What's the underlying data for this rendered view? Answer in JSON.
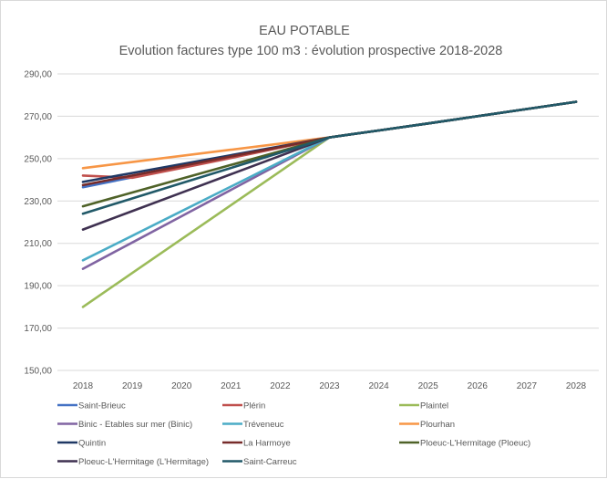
{
  "chart_data": {
    "type": "line",
    "title": "EAU POTABLE",
    "subtitle": "Evolution factures type 100 m3 : évolution prospective 2018-2028",
    "xlabel": "",
    "ylabel": "",
    "x": [
      "2018",
      "2019",
      "2020",
      "2021",
      "2022",
      "2023",
      "2024",
      "2025",
      "2026",
      "2027",
      "2028"
    ],
    "ylim": [
      150,
      290
    ],
    "yticks": [
      150,
      170,
      190,
      210,
      230,
      250,
      270,
      290
    ],
    "ytick_labels": [
      "150,00",
      "170,00",
      "190,00",
      "210,00",
      "230,00",
      "250,00",
      "270,00",
      "290,00"
    ],
    "grid": true,
    "legend_position": "bottom",
    "series": [
      {
        "name": "Saint-Brieuc",
        "color": "#4472c4",
        "values": [
          236.5,
          241.2,
          245.9,
          250.6,
          255.3,
          260.0,
          263.3,
          266.6,
          270.0,
          273.4,
          276.8
        ]
      },
      {
        "name": "Plérin",
        "color": "#c0504d",
        "values": [
          242.0,
          241.0,
          245.6,
          250.3,
          255.2,
          260.0,
          263.3,
          266.6,
          270.0,
          273.4,
          276.8
        ]
      },
      {
        "name": "Plaintel",
        "color": "#9bbb59",
        "values": [
          180.0,
          196.0,
          212.0,
          228.0,
          244.0,
          260.0,
          263.3,
          266.6,
          270.0,
          273.4,
          276.8
        ]
      },
      {
        "name": "Binic - Etables sur mer (Binic)",
        "color": "#8064a2",
        "values": [
          198.0,
          210.4,
          222.8,
          235.2,
          247.6,
          260.0,
          263.3,
          266.6,
          270.0,
          273.4,
          276.8
        ]
      },
      {
        "name": "Tréveneuc",
        "color": "#4bacc6",
        "values": [
          202.0,
          213.6,
          225.2,
          236.8,
          248.4,
          260.0,
          263.3,
          266.6,
          270.0,
          273.4,
          276.8
        ]
      },
      {
        "name": "Plourhan",
        "color": "#f79646",
        "values": [
          245.5,
          248.4,
          251.3,
          254.2,
          257.1,
          260.0,
          263.3,
          266.6,
          270.0,
          273.4,
          276.8
        ]
      },
      {
        "name": "Quintin",
        "color": "#1f3864",
        "values": [
          239.0,
          243.2,
          247.4,
          251.6,
          255.8,
          260.0,
          263.3,
          266.6,
          270.0,
          273.4,
          276.8
        ]
      },
      {
        "name": "La Harmoye",
        "color": "#772c2a",
        "values": [
          237.5,
          242.0,
          246.5,
          251.0,
          255.5,
          260.0,
          263.3,
          266.6,
          270.0,
          273.4,
          276.8
        ]
      },
      {
        "name": "Ploeuc-L'Hermitage (Ploeuc)",
        "color": "#4f6228",
        "values": [
          227.5,
          234.0,
          240.5,
          247.0,
          253.5,
          260.0,
          263.3,
          266.6,
          270.0,
          273.4,
          276.8
        ]
      },
      {
        "name": "Ploeuc-L'Hermitage (L'Hermitage)",
        "color": "#3f3151",
        "values": [
          216.5,
          225.2,
          233.9,
          242.6,
          251.3,
          260.0,
          263.3,
          266.6,
          270.0,
          273.4,
          276.8
        ]
      },
      {
        "name": "Saint-Carreuc",
        "color": "#215968",
        "values": [
          224.0,
          231.2,
          238.4,
          245.6,
          252.8,
          260.0,
          263.3,
          266.6,
          270.0,
          273.4,
          276.8
        ]
      }
    ]
  }
}
